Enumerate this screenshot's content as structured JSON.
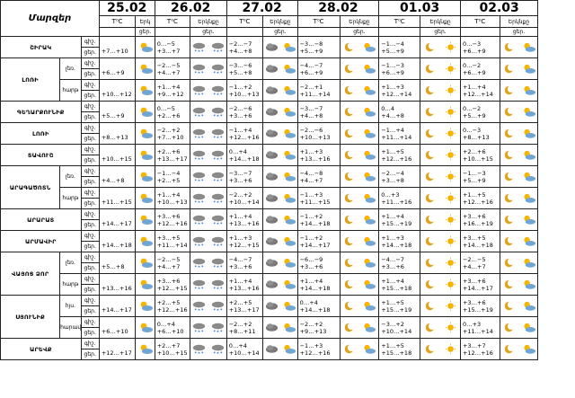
{
  "header": {
    "title": "Մարզեր",
    "tc": "T⁰C",
    "sky": "Երկնքը",
    "sky_short": "Երկ",
    "day": "ցեր.",
    "night": "գիշ.",
    "day_night": "ցեր.",
    "dates": [
      "25.02",
      "26.02",
      "27.02",
      "28.02",
      "01.03",
      "02.03"
    ]
  },
  "subrow_labels": {
    "night": "գիշ.",
    "day": "ցեր.",
    "lower": "լեռ.",
    "plain": "հարթ",
    "north": "հյս.",
    "south": "հարավ"
  },
  "rows": [
    {
      "region": "ՇԻՐԱԿ",
      "sub": "",
      "d": [
        [
          "",
          "+7…+10"
        ],
        [
          "0…−5",
          "+3…+7"
        ],
        [
          "−2…−7",
          "+4…+8"
        ],
        [
          "−3…−8",
          "+5…+9"
        ],
        [
          "−1…−4",
          "+5…+9"
        ],
        [
          "0…−3",
          "+6…+9"
        ]
      ]
    },
    {
      "region": "ԼՈՌԻ",
      "sub": "լեռ.",
      "d": [
        [
          "",
          "+6…+9"
        ],
        [
          "−2…−5",
          "+4…+7"
        ],
        [
          "−3…−6",
          "+5…+8"
        ],
        [
          "−4…−7",
          "+6…+9"
        ],
        [
          "−1…−3",
          "+6…+9"
        ],
        [
          "0…−2",
          "+6…+9"
        ]
      ]
    },
    {
      "region": "",
      "sub": "հարթ",
      "d": [
        [
          "",
          "+10…+12"
        ],
        [
          "+1…+4",
          "+9…+12"
        ],
        [
          "−1…+2",
          "+10…+13"
        ],
        [
          "−2…+1",
          "+11…+14"
        ],
        [
          "+1…+3",
          "+12…+14"
        ],
        [
          "+1…+4",
          "+12…+14"
        ]
      ]
    },
    {
      "region": "ԳԵՂԱՐՔՈՒՆԻՔ",
      "sub": "",
      "d": [
        [
          "",
          "+5…+9"
        ],
        [
          "0…−5",
          "+2…+6"
        ],
        [
          "−2…−6",
          "+3…+6"
        ],
        [
          "−3…−7",
          "+4…+8"
        ],
        [
          "0…4",
          "+4…+8"
        ],
        [
          "0…−2",
          "+5…+9"
        ]
      ]
    },
    {
      "region": "ԼՈՌԻ",
      "sub": "",
      "d": [
        [
          "",
          "+8…+13"
        ],
        [
          "−2…+2",
          "+7…+10"
        ],
        [
          "−1…+4",
          "+12…+16"
        ],
        [
          "−2…−6",
          "+10…+13"
        ],
        [
          "−1…+4",
          "+11…+14"
        ],
        [
          "0…−3",
          "+8…+13"
        ]
      ]
    },
    {
      "region": "ՏԱՎՈՒՇ",
      "sub": "",
      "d": [
        [
          "",
          "+10…+15"
        ],
        [
          "+2…+6",
          "+13…+17"
        ],
        [
          "0…+4",
          "+14…+18"
        ],
        [
          "+1…+3",
          "+13…+16"
        ],
        [
          "+1…+5",
          "+12…+16"
        ],
        [
          "+2…+6",
          "+10…+15"
        ]
      ]
    },
    {
      "region": "ԱՐԱԳԱԾՈՏՆ",
      "sub": "լեռ.",
      "d": [
        [
          "",
          "+4…+8"
        ],
        [
          "−1…−4",
          "+2…+5"
        ],
        [
          "−3…−7",
          "+3…+6"
        ],
        [
          "−4…−8",
          "+4…+7"
        ],
        [
          "−2…−4",
          "+3…+8"
        ],
        [
          "−1…−3",
          "+5…+9"
        ]
      ]
    },
    {
      "region": "",
      "sub": "հարթ",
      "d": [
        [
          "",
          "+11…+15"
        ],
        [
          "+1…+4",
          "+10…+13"
        ],
        [
          "−2…+2",
          "+10…+14"
        ],
        [
          "−1…+3",
          "+11…+15"
        ],
        [
          "0…+3",
          "+11…+16"
        ],
        [
          "+1…+5",
          "+12…+16"
        ]
      ]
    },
    {
      "region": "ԱՐԱՐԱՏ",
      "sub": "",
      "d": [
        [
          "",
          "+14…+17"
        ],
        [
          "+3…+6",
          "+12…+16"
        ],
        [
          "+1…+4",
          "+13…+16"
        ],
        [
          "−1…+2",
          "+14…+18"
        ],
        [
          "+1…+4",
          "+15…+19"
        ],
        [
          "+3…+6",
          "+16…+19"
        ]
      ]
    },
    {
      "region": "ԱՐՄԱՎԻՐ",
      "sub": "",
      "d": [
        [
          "",
          "+14…+18"
        ],
        [
          "+3…+5",
          "+11…+14"
        ],
        [
          "+1…+3",
          "+12…+15"
        ],
        [
          "−1…+2",
          "+14…+17"
        ],
        [
          "+1…+3",
          "+14…+18"
        ],
        [
          "+3…+5",
          "+14…+18"
        ]
      ]
    },
    {
      "region": "ՎԱՅՈՑ ՁՈՐ",
      "sub": "լեռ.",
      "d": [
        [
          "",
          "+5…+8"
        ],
        [
          "−2…−5",
          "+4…+7"
        ],
        [
          "−4…−7",
          "+3…+6"
        ],
        [
          "−6…−9",
          "+3…+6"
        ],
        [
          "−4…−7",
          "+3…+6"
        ],
        [
          "−2…−5",
          "+4…+7"
        ]
      ]
    },
    {
      "region": "",
      "sub": "հարթ",
      "d": [
        [
          "",
          "+13…+16"
        ],
        [
          "+3…+6",
          "+12…+15"
        ],
        [
          "+1…+4",
          "+13…+16"
        ],
        [
          "+1…+4",
          "+14…+18"
        ],
        [
          "+1…+4",
          "+15…+18"
        ],
        [
          "+3…+6",
          "+14…+17"
        ]
      ]
    },
    {
      "region": "ՍՅՈՒՆԻՔ",
      "sub": "հյս.",
      "d": [
        [
          "",
          "+14…+17"
        ],
        [
          "+2…+5",
          "+12…+16"
        ],
        [
          "+2…+5",
          "+13…+17"
        ],
        [
          "0…+4",
          "+14…+18"
        ],
        [
          "+1…+5",
          "+15…+19"
        ],
        [
          "+3…+6",
          "+15…+19"
        ]
      ]
    },
    {
      "region": "",
      "sub": "հարավ",
      "d": [
        [
          "",
          "+6…+10"
        ],
        [
          "0…+4",
          "+6…+10"
        ],
        [
          "−2…+2",
          "+8…+11"
        ],
        [
          "−2…+2",
          "+9…+13"
        ],
        [
          "−3…+2",
          "+10…+14"
        ],
        [
          "0…+3",
          "+11…+14"
        ]
      ]
    },
    {
      "region": "ԱՐԵՎՔ",
      "sub": "",
      "d": [
        [
          "",
          "+12…+17"
        ],
        [
          "+2…+7",
          "+10…+15"
        ],
        [
          "0…+4",
          "+10…+14"
        ],
        [
          "−1…+3",
          "+12…+16"
        ],
        [
          "+1…+5",
          "+15…+18"
        ],
        [
          "+3…+7",
          "+12…+16"
        ]
      ]
    }
  ],
  "icon_legend": {
    "moon": "moon-icon",
    "sun": "sun-icon",
    "sun_cloud": "sun-cloud-icon",
    "cloud": "cloud-icon",
    "rain": "rain-icon",
    "snow": "snow-icon"
  }
}
